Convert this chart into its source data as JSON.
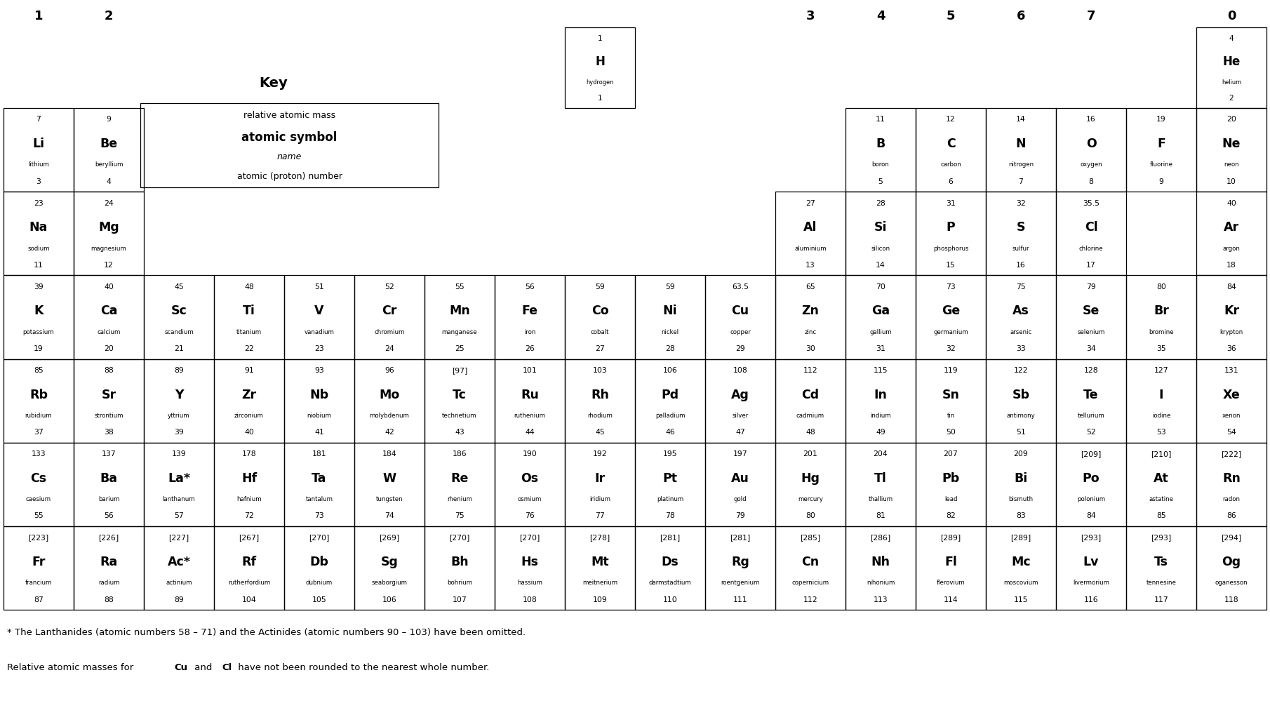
{
  "background": "#ffffff",
  "footer1": "* The Lanthanides (atomic numbers 58 – 71) and the Actinides (atomic numbers 90 – 103) have been omitted.",
  "footer2_parts": [
    [
      "Relative atomic masses for ",
      false
    ],
    [
      "Cu",
      true
    ],
    [
      " and ",
      false
    ],
    [
      "Cl",
      true
    ],
    [
      " have not been rounded to the nearest whole number.",
      false
    ]
  ],
  "group_labels": [
    [
      "1",
      0
    ],
    [
      "2",
      1
    ],
    [
      "3",
      11
    ],
    [
      "4",
      12
    ],
    [
      "5",
      13
    ],
    [
      "6",
      14
    ],
    [
      "7",
      15
    ],
    [
      "0",
      17
    ]
  ],
  "elements": [
    {
      "mass": "1",
      "symbol": "H",
      "name": "hydrogen",
      "num": "1",
      "col": 8,
      "row": 1
    },
    {
      "mass": "4",
      "symbol": "He",
      "name": "helium",
      "num": "2",
      "col": 17,
      "row": 1
    },
    {
      "mass": "7",
      "symbol": "Li",
      "name": "lithium",
      "num": "3",
      "col": 0,
      "row": 2
    },
    {
      "mass": "9",
      "symbol": "Be",
      "name": "beryllium",
      "num": "4",
      "col": 1,
      "row": 2
    },
    {
      "mass": "11",
      "symbol": "B",
      "name": "boron",
      "num": "5",
      "col": 12,
      "row": 2
    },
    {
      "mass": "12",
      "symbol": "C",
      "name": "carbon",
      "num": "6",
      "col": 13,
      "row": 2
    },
    {
      "mass": "14",
      "symbol": "N",
      "name": "nitrogen",
      "num": "7",
      "col": 14,
      "row": 2
    },
    {
      "mass": "16",
      "symbol": "O",
      "name": "oxygen",
      "num": "8",
      "col": 15,
      "row": 2
    },
    {
      "mass": "19",
      "symbol": "F",
      "name": "fluorine",
      "num": "9",
      "col": 16,
      "row": 2
    },
    {
      "mass": "20",
      "symbol": "Ne",
      "name": "neon",
      "num": "10",
      "col": 17,
      "row": 2
    },
    {
      "mass": "23",
      "symbol": "Na",
      "name": "sodium",
      "num": "11",
      "col": 0,
      "row": 3
    },
    {
      "mass": "24",
      "symbol": "Mg",
      "name": "magnesium",
      "num": "12",
      "col": 1,
      "row": 3
    },
    {
      "mass": "27",
      "symbol": "Al",
      "name": "aluminium",
      "num": "13",
      "col": 11,
      "row": 3
    },
    {
      "mass": "28",
      "symbol": "Si",
      "name": "silicon",
      "num": "14",
      "col": 12,
      "row": 3
    },
    {
      "mass": "31",
      "symbol": "P",
      "name": "phosphorus",
      "num": "15",
      "col": 13,
      "row": 3
    },
    {
      "mass": "32",
      "symbol": "S",
      "name": "sulfur",
      "num": "16",
      "col": 14,
      "row": 3
    },
    {
      "mass": "35.5",
      "symbol": "Cl",
      "name": "chlorine",
      "num": "17",
      "col": 15,
      "row": 3
    },
    {
      "mass": "40",
      "symbol": "Ar",
      "name": "argon",
      "num": "18",
      "col": 17,
      "row": 3
    },
    {
      "mass": "39",
      "symbol": "K",
      "name": "potassium",
      "num": "19",
      "col": 0,
      "row": 4
    },
    {
      "mass": "40",
      "symbol": "Ca",
      "name": "calcium",
      "num": "20",
      "col": 1,
      "row": 4
    },
    {
      "mass": "45",
      "symbol": "Sc",
      "name": "scandium",
      "num": "21",
      "col": 2,
      "row": 4
    },
    {
      "mass": "48",
      "symbol": "Ti",
      "name": "titanium",
      "num": "22",
      "col": 3,
      "row": 4
    },
    {
      "mass": "51",
      "symbol": "V",
      "name": "vanadium",
      "num": "23",
      "col": 4,
      "row": 4
    },
    {
      "mass": "52",
      "symbol": "Cr",
      "name": "chromium",
      "num": "24",
      "col": 5,
      "row": 4
    },
    {
      "mass": "55",
      "symbol": "Mn",
      "name": "manganese",
      "num": "25",
      "col": 6,
      "row": 4
    },
    {
      "mass": "56",
      "symbol": "Fe",
      "name": "iron",
      "num": "26",
      "col": 7,
      "row": 4
    },
    {
      "mass": "59",
      "symbol": "Co",
      "name": "cobalt",
      "num": "27",
      "col": 8,
      "row": 4
    },
    {
      "mass": "59",
      "symbol": "Ni",
      "name": "nickel",
      "num": "28",
      "col": 9,
      "row": 4
    },
    {
      "mass": "63.5",
      "symbol": "Cu",
      "name": "copper",
      "num": "29",
      "col": 10,
      "row": 4
    },
    {
      "mass": "65",
      "symbol": "Zn",
      "name": "zinc",
      "num": "30",
      "col": 11,
      "row": 4
    },
    {
      "mass": "70",
      "symbol": "Ga",
      "name": "gallium",
      "num": "31",
      "col": 12,
      "row": 4
    },
    {
      "mass": "73",
      "symbol": "Ge",
      "name": "germanium",
      "num": "32",
      "col": 13,
      "row": 4
    },
    {
      "mass": "75",
      "symbol": "As",
      "name": "arsenic",
      "num": "33",
      "col": 14,
      "row": 4
    },
    {
      "mass": "79",
      "symbol": "Se",
      "name": "selenium",
      "num": "34",
      "col": 15,
      "row": 4
    },
    {
      "mass": "80",
      "symbol": "Br",
      "name": "bromine",
      "num": "35",
      "col": 16,
      "row": 4
    },
    {
      "mass": "84",
      "symbol": "Kr",
      "name": "krypton",
      "num": "36",
      "col": 17,
      "row": 4
    },
    {
      "mass": "85",
      "symbol": "Rb",
      "name": "rubidium",
      "num": "37",
      "col": 0,
      "row": 5
    },
    {
      "mass": "88",
      "symbol": "Sr",
      "name": "strontium",
      "num": "38",
      "col": 1,
      "row": 5
    },
    {
      "mass": "89",
      "symbol": "Y",
      "name": "yttrium",
      "num": "39",
      "col": 2,
      "row": 5
    },
    {
      "mass": "91",
      "symbol": "Zr",
      "name": "zirconium",
      "num": "40",
      "col": 3,
      "row": 5
    },
    {
      "mass": "93",
      "symbol": "Nb",
      "name": "niobium",
      "num": "41",
      "col": 4,
      "row": 5
    },
    {
      "mass": "96",
      "symbol": "Mo",
      "name": "molybdenum",
      "num": "42",
      "col": 5,
      "row": 5
    },
    {
      "mass": "[97]",
      "symbol": "Tc",
      "name": "technetium",
      "num": "43",
      "col": 6,
      "row": 5
    },
    {
      "mass": "101",
      "symbol": "Ru",
      "name": "ruthenium",
      "num": "44",
      "col": 7,
      "row": 5
    },
    {
      "mass": "103",
      "symbol": "Rh",
      "name": "rhodium",
      "num": "45",
      "col": 8,
      "row": 5
    },
    {
      "mass": "106",
      "symbol": "Pd",
      "name": "palladium",
      "num": "46",
      "col": 9,
      "row": 5
    },
    {
      "mass": "108",
      "symbol": "Ag",
      "name": "silver",
      "num": "47",
      "col": 10,
      "row": 5
    },
    {
      "mass": "112",
      "symbol": "Cd",
      "name": "cadmium",
      "num": "48",
      "col": 11,
      "row": 5
    },
    {
      "mass": "115",
      "symbol": "In",
      "name": "indium",
      "num": "49",
      "col": 12,
      "row": 5
    },
    {
      "mass": "119",
      "symbol": "Sn",
      "name": "tin",
      "num": "50",
      "col": 13,
      "row": 5
    },
    {
      "mass": "122",
      "symbol": "Sb",
      "name": "antimony",
      "num": "51",
      "col": 14,
      "row": 5
    },
    {
      "mass": "128",
      "symbol": "Te",
      "name": "tellurium",
      "num": "52",
      "col": 15,
      "row": 5
    },
    {
      "mass": "127",
      "symbol": "I",
      "name": "iodine",
      "num": "53",
      "col": 16,
      "row": 5
    },
    {
      "mass": "131",
      "symbol": "Xe",
      "name": "xenon",
      "num": "54",
      "col": 17,
      "row": 5
    },
    {
      "mass": "133",
      "symbol": "Cs",
      "name": "caesium",
      "num": "55",
      "col": 0,
      "row": 6
    },
    {
      "mass": "137",
      "symbol": "Ba",
      "name": "barium",
      "num": "56",
      "col": 1,
      "row": 6
    },
    {
      "mass": "139",
      "symbol": "La*",
      "name": "lanthanum",
      "num": "57",
      "col": 2,
      "row": 6
    },
    {
      "mass": "178",
      "symbol": "Hf",
      "name": "hafnium",
      "num": "72",
      "col": 3,
      "row": 6
    },
    {
      "mass": "181",
      "symbol": "Ta",
      "name": "tantalum",
      "num": "73",
      "col": 4,
      "row": 6
    },
    {
      "mass": "184",
      "symbol": "W",
      "name": "tungsten",
      "num": "74",
      "col": 5,
      "row": 6
    },
    {
      "mass": "186",
      "symbol": "Re",
      "name": "rhenium",
      "num": "75",
      "col": 6,
      "row": 6
    },
    {
      "mass": "190",
      "symbol": "Os",
      "name": "osmium",
      "num": "76",
      "col": 7,
      "row": 6
    },
    {
      "mass": "192",
      "symbol": "Ir",
      "name": "iridium",
      "num": "77",
      "col": 8,
      "row": 6
    },
    {
      "mass": "195",
      "symbol": "Pt",
      "name": "platinum",
      "num": "78",
      "col": 9,
      "row": 6
    },
    {
      "mass": "197",
      "symbol": "Au",
      "name": "gold",
      "num": "79",
      "col": 10,
      "row": 6
    },
    {
      "mass": "201",
      "symbol": "Hg",
      "name": "mercury",
      "num": "80",
      "col": 11,
      "row": 6
    },
    {
      "mass": "204",
      "symbol": "Tl",
      "name": "thallium",
      "num": "81",
      "col": 12,
      "row": 6
    },
    {
      "mass": "207",
      "symbol": "Pb",
      "name": "lead",
      "num": "82",
      "col": 13,
      "row": 6
    },
    {
      "mass": "209",
      "symbol": "Bi",
      "name": "bismuth",
      "num": "83",
      "col": 14,
      "row": 6
    },
    {
      "mass": "[209]",
      "symbol": "Po",
      "name": "polonium",
      "num": "84",
      "col": 15,
      "row": 6
    },
    {
      "mass": "[210]",
      "symbol": "At",
      "name": "astatine",
      "num": "85",
      "col": 16,
      "row": 6
    },
    {
      "mass": "[222]",
      "symbol": "Rn",
      "name": "radon",
      "num": "86",
      "col": 17,
      "row": 6
    },
    {
      "mass": "[223]",
      "symbol": "Fr",
      "name": "francium",
      "num": "87",
      "col": 0,
      "row": 7
    },
    {
      "mass": "[226]",
      "symbol": "Ra",
      "name": "radium",
      "num": "88",
      "col": 1,
      "row": 7
    },
    {
      "mass": "[227]",
      "symbol": "Ac*",
      "name": "actinium",
      "num": "89",
      "col": 2,
      "row": 7
    },
    {
      "mass": "[267]",
      "symbol": "Rf",
      "name": "rutherfordium",
      "num": "104",
      "col": 3,
      "row": 7
    },
    {
      "mass": "[270]",
      "symbol": "Db",
      "name": "dubnium",
      "num": "105",
      "col": 4,
      "row": 7
    },
    {
      "mass": "[269]",
      "symbol": "Sg",
      "name": "seaborgium",
      "num": "106",
      "col": 5,
      "row": 7
    },
    {
      "mass": "[270]",
      "symbol": "Bh",
      "name": "bohrium",
      "num": "107",
      "col": 6,
      "row": 7
    },
    {
      "mass": "[270]",
      "symbol": "Hs",
      "name": "hassium",
      "num": "108",
      "col": 7,
      "row": 7
    },
    {
      "mass": "[278]",
      "symbol": "Mt",
      "name": "meitnerium",
      "num": "109",
      "col": 8,
      "row": 7
    },
    {
      "mass": "[281]",
      "symbol": "Ds",
      "name": "darmstadtium",
      "num": "110",
      "col": 9,
      "row": 7
    },
    {
      "mass": "[281]",
      "symbol": "Rg",
      "name": "roentgenium",
      "num": "111",
      "col": 10,
      "row": 7
    },
    {
      "mass": "[285]",
      "symbol": "Cn",
      "name": "copernicium",
      "num": "112",
      "col": 11,
      "row": 7
    },
    {
      "mass": "[286]",
      "symbol": "Nh",
      "name": "nihonium",
      "num": "113",
      "col": 12,
      "row": 7
    },
    {
      "mass": "[289]",
      "symbol": "Fl",
      "name": "flerovium",
      "num": "114",
      "col": 13,
      "row": 7
    },
    {
      "mass": "[289]",
      "symbol": "Mc",
      "name": "moscovium",
      "num": "115",
      "col": 14,
      "row": 7
    },
    {
      "mass": "[293]",
      "symbol": "Lv",
      "name": "livermorium",
      "num": "116",
      "col": 15,
      "row": 7
    },
    {
      "mass": "[293]",
      "symbol": "Ts",
      "name": "tennesine",
      "num": "117",
      "col": 16,
      "row": 7
    },
    {
      "mass": "[294]",
      "symbol": "Og",
      "name": "oganesson",
      "num": "118",
      "col": 17,
      "row": 7
    }
  ]
}
